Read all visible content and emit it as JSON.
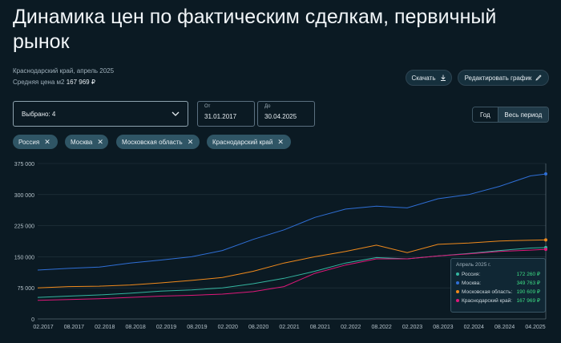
{
  "header": {
    "title": "Динамика цен по фактическим сделкам, первичный рынок",
    "subtitle": "Краснодарский край, апрель 2025",
    "avg_label": "Средняя цена м2",
    "avg_value": "167 969 ₽"
  },
  "actions": {
    "download": "Скачать",
    "edit": "Редактировать график"
  },
  "filters": {
    "selected": "Выбрано: 4",
    "from_label": "От",
    "from_value": "31.01.2017",
    "to_label": "До",
    "to_value": "30.04.2025",
    "period_year": "Год",
    "period_all": "Весь период",
    "chips": [
      "Россия",
      "Москва",
      "Московская область",
      "Краснодарский край"
    ]
  },
  "colors": {
    "Россия": "#34b5a0",
    "Москва": "#2f6fd6",
    "Московская область": "#f08a1c",
    "Краснодарский край": "#e0187a"
  },
  "tooltip": {
    "header": "Апрель 2025 г.",
    "rows": [
      {
        "name": "Россия:",
        "value": "172 260 ₽",
        "color": "#34b5a0"
      },
      {
        "name": "Москва:",
        "value": "349 763 ₽",
        "color": "#2f6fd6"
      },
      {
        "name": "Московская область:",
        "value": "190 609 ₽",
        "color": "#f08a1c"
      },
      {
        "name": "Краснодарский край:",
        "value": "167 969 ₽",
        "color": "#e0187a"
      }
    ]
  },
  "chart_data": {
    "type": "line",
    "yticks": [
      "375 000",
      "300 000",
      "225 000",
      "150 000",
      "75 000",
      "0"
    ],
    "ylim": [
      0,
      375000
    ],
    "xticks": [
      "02.2017",
      "08.2017",
      "02.2018",
      "08.2018",
      "02.2019",
      "08.2019",
      "02.2020",
      "08.2020",
      "02.2021",
      "08.2021",
      "02.2022",
      "08.2022",
      "02.2023",
      "08.2023",
      "02.2024",
      "08.2024",
      "04.2025"
    ],
    "x": [
      0,
      6,
      12,
      18,
      24,
      30,
      36,
      42,
      48,
      54,
      60,
      66,
      72,
      78,
      84,
      90,
      96,
      99
    ],
    "series": [
      {
        "name": "Москва",
        "color": "#2f6fd6",
        "values": [
          118000,
          122000,
          125000,
          135000,
          142000,
          150000,
          165000,
          192000,
          215000,
          245000,
          265000,
          272000,
          268000,
          290000,
          300000,
          320000,
          345000,
          349763
        ]
      },
      {
        "name": "Московская область",
        "color": "#f08a1c",
        "values": [
          75000,
          78000,
          79000,
          82000,
          87000,
          93000,
          100000,
          115000,
          135000,
          150000,
          163000,
          178000,
          160000,
          180000,
          183000,
          188000,
          190000,
          190609
        ]
      },
      {
        "name": "Россия",
        "color": "#34b5a0",
        "values": [
          52000,
          55000,
          58000,
          62000,
          67000,
          70000,
          75000,
          85000,
          98000,
          115000,
          135000,
          148000,
          145000,
          152000,
          158000,
          165000,
          171000,
          172260
        ]
      },
      {
        "name": "Краснодарский край",
        "color": "#e0187a",
        "values": [
          45000,
          47000,
          49000,
          52000,
          55000,
          57000,
          60000,
          66000,
          78000,
          110000,
          130000,
          145000,
          145000,
          152000,
          157000,
          163000,
          166000,
          167969
        ]
      }
    ]
  }
}
